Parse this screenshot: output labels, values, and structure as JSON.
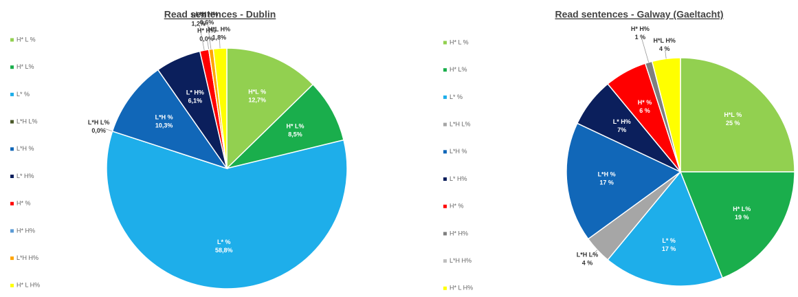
{
  "chart_data": [
    {
      "type": "pie",
      "title": "Read sentences - Dublin",
      "categories": [
        "H* L %",
        "H* L%",
        "L* %",
        "L*H L%",
        "L*H %",
        "L* H%",
        "H* %",
        "H* H%",
        "L*H H%",
        "H* L H%"
      ],
      "slice_labels": [
        "H*L %",
        "H* L%",
        "L* %",
        "L*H L%",
        "L*H %",
        "L* H%",
        "H* %",
        "H* H%",
        "L*H H%",
        "H*L H%"
      ],
      "values": [
        12.7,
        8.5,
        58.8,
        0.0,
        10.3,
        6.1,
        1.2,
        0.0,
        0.6,
        1.8
      ],
      "value_labels": [
        "12,7%",
        "8,5%",
        "58,8%",
        "0,0%",
        "10,3%",
        "6,1%",
        "1,2%",
        "0,0%",
        "0,6%",
        "1,8%"
      ],
      "colors": [
        "#92d050",
        "#1aae4c",
        "#1eaeea",
        "#4b5a2a",
        "#1167b8",
        "#0b1f5c",
        "#ff0000",
        "#5b9bd5",
        "#ffa500",
        "#ffff00"
      ]
    },
    {
      "type": "pie",
      "title": "Read sentences - Galway (Gaeltacht)",
      "categories": [
        "H* L %",
        "H* L%",
        "L* %",
        "L*H L%",
        "L*H %",
        "L* H%",
        "H* %",
        "H* H%",
        "L*H H%",
        "H* L H%"
      ],
      "slice_labels": [
        "H*L %",
        "H* L%",
        "L* %",
        "L*H L%",
        "L*H %",
        "L* H%",
        "H* %",
        "H* H%",
        null,
        "H*L H%"
      ],
      "values": [
        25,
        19,
        17,
        4,
        17,
        7,
        6,
        1,
        0,
        4
      ],
      "value_labels": [
        "25 %",
        "19 %",
        "17 %",
        "4 %",
        "17 %",
        "7%",
        "6 %",
        "1 %",
        null,
        "4 %"
      ],
      "colors": [
        "#92d050",
        "#1aae4c",
        "#1eaeea",
        "#a6a6a6",
        "#1167b8",
        "#0b1f5c",
        "#ff0000",
        "#7f7f7f",
        "#bfbfbf",
        "#ffff00"
      ]
    }
  ]
}
